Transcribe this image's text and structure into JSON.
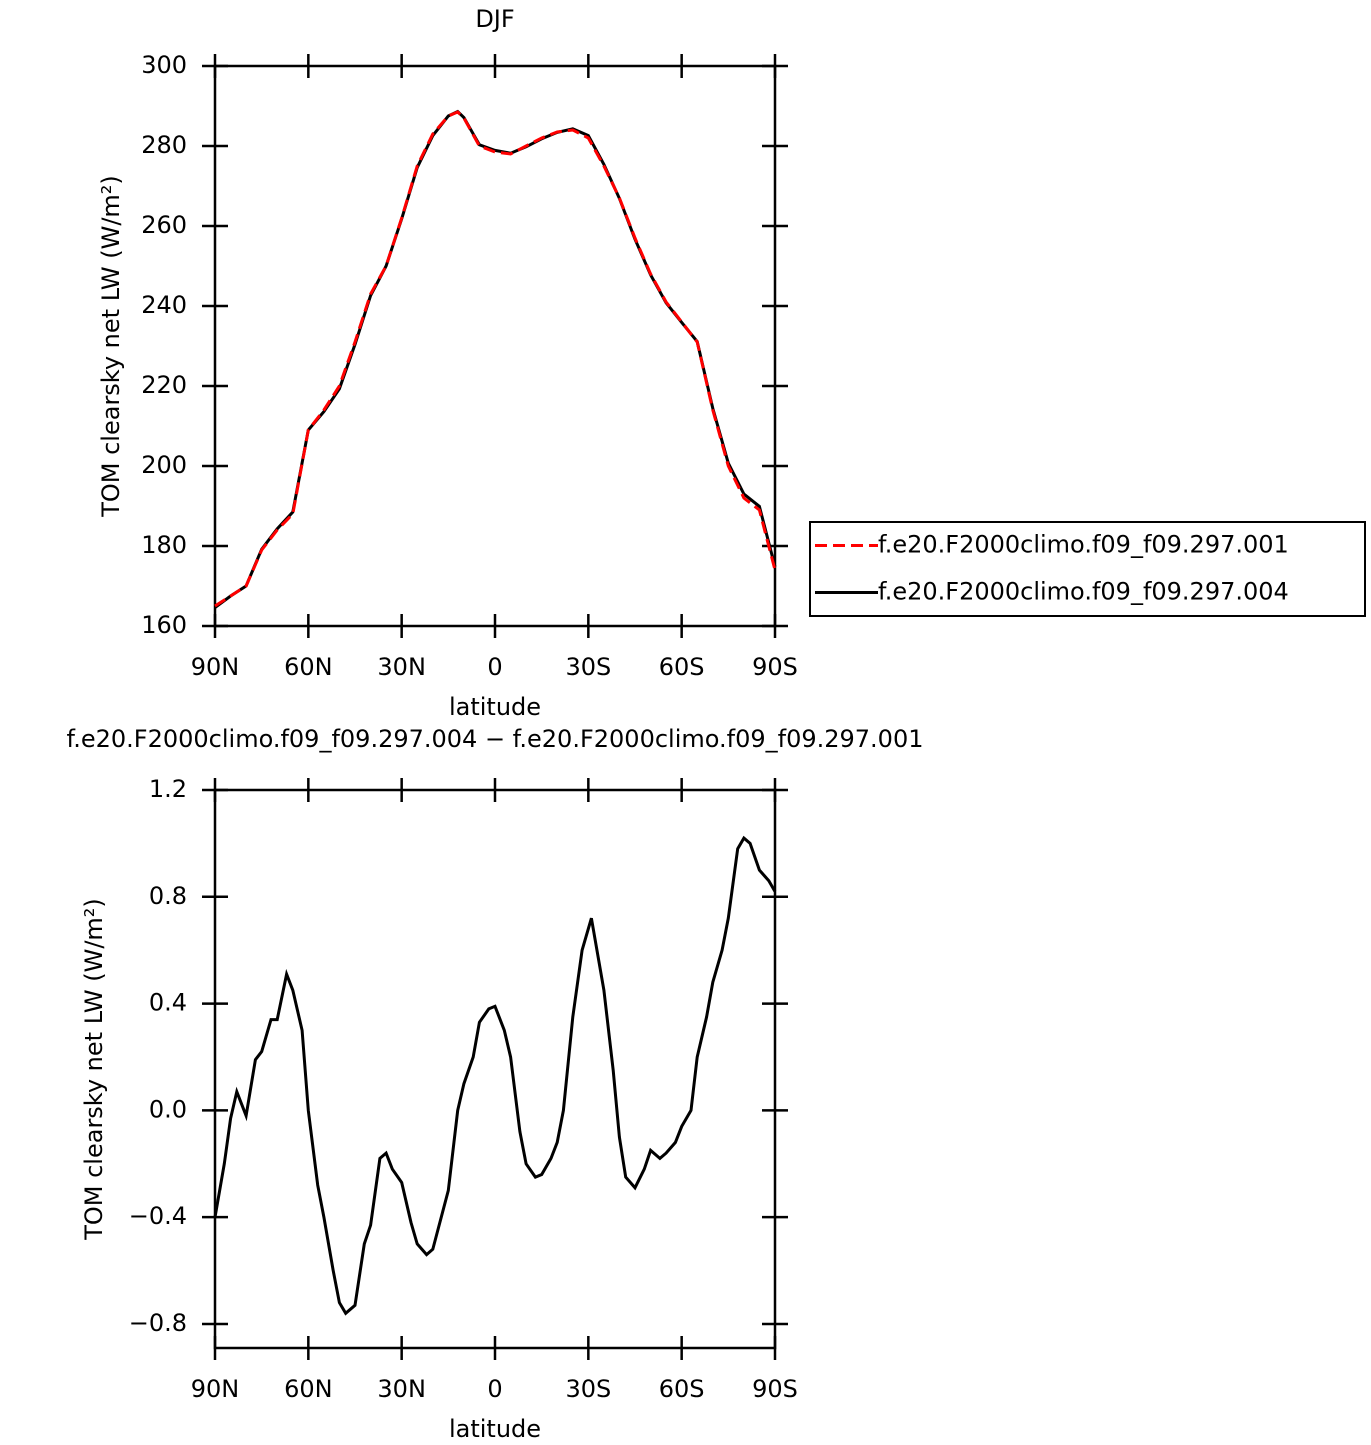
{
  "chart_data": [
    {
      "type": "line",
      "title": "DJF",
      "xlabel": "latitude",
      "ylabel": "TOM clearsky net LW (W/m²)",
      "x": [
        90,
        85,
        80,
        75,
        70,
        65,
        60,
        55,
        50,
        45,
        40,
        35,
        30,
        25,
        20,
        15,
        12,
        10,
        5,
        0,
        -5,
        -10,
        -15,
        -20,
        -25,
        -30,
        -35,
        -40,
        -45,
        -50,
        -55,
        -60,
        -65,
        -70,
        -75,
        -80,
        -85,
        -90
      ],
      "series": [
        {
          "name": "f.e20.F2000climo.f09_f09.297.001",
          "color": "#ff0000",
          "dashed": true,
          "values": [
            165,
            167.5,
            170,
            179,
            184,
            188,
            209,
            214,
            220,
            231,
            243,
            250,
            262,
            275,
            283,
            287.5,
            288.5,
            287,
            280,
            278.5,
            278,
            280,
            282,
            283.5,
            284,
            282,
            275,
            267,
            257,
            248,
            241,
            236,
            231,
            214,
            200,
            192,
            189,
            174
          ]
        },
        {
          "name": "f.e20.F2000climo.f09_f09.297.004",
          "color": "#000000",
          "dashed": false,
          "values": [
            164.6,
            167.5,
            170,
            179.2,
            184.3,
            188.5,
            209,
            213.6,
            219.3,
            230.4,
            242.6,
            250,
            261.8,
            274.6,
            282.6,
            287.5,
            288.6,
            287.1,
            280.3,
            278.9,
            278.2,
            279.8,
            281.8,
            283.4,
            284.3,
            282.6,
            275.4,
            266.9,
            256.7,
            247.8,
            240.8,
            235.9,
            231.1,
            214.4,
            200.7,
            193,
            189.9,
            174.8
          ]
        }
      ],
      "xlim": [
        90,
        -90
      ],
      "xticks": [
        {
          "value": 90,
          "label": "90N"
        },
        {
          "value": 60,
          "label": "60N"
        },
        {
          "value": 30,
          "label": "30N"
        },
        0,
        {
          "value": -30,
          "label": "30S"
        },
        {
          "value": -60,
          "label": "60S"
        },
        {
          "value": -90,
          "label": "90S"
        }
      ],
      "ylim": [
        160,
        300
      ],
      "yticks": [
        160,
        180,
        200,
        220,
        240,
        260,
        280,
        300
      ],
      "legend": "right"
    },
    {
      "type": "line",
      "title": "f.e20.F2000climo.f09_f09.297.004 − f.e20.F2000climo.f09_f09.297.001",
      "xlabel": "latitude",
      "ylabel": "TOM clearsky net LW (W/m²)",
      "x": [
        90,
        87,
        85,
        83,
        80,
        77,
        75,
        72,
        70,
        67,
        65,
        62,
        60,
        57,
        55,
        52,
        50,
        48,
        45,
        42,
        40,
        37,
        35,
        33,
        30,
        27,
        25,
        22,
        20,
        15,
        12,
        10,
        7,
        5,
        2,
        0,
        -3,
        -5,
        -8,
        -10,
        -13,
        -15,
        -18,
        -20,
        -22,
        -25,
        -28,
        -31,
        -35,
        -38,
        -40,
        -42,
        -45,
        -48,
        -50,
        -53,
        -55,
        -58,
        -60,
        -63,
        -65,
        -68,
        -70,
        -73,
        -75,
        -78,
        -80,
        -82,
        -85,
        -88,
        -90
      ],
      "color": "#000000",
      "values": [
        -0.4,
        -0.2,
        -0.03,
        0.07,
        -0.02,
        0.19,
        0.22,
        0.34,
        0.34,
        0.51,
        0.45,
        0.3,
        0.0,
        -0.28,
        -0.4,
        -0.6,
        -0.72,
        -0.76,
        -0.73,
        -0.5,
        -0.43,
        -0.18,
        -0.16,
        -0.22,
        -0.27,
        -0.42,
        -0.5,
        -0.54,
        -0.52,
        -0.3,
        0.0,
        0.1,
        0.2,
        0.33,
        0.38,
        0.39,
        0.3,
        0.2,
        -0.08,
        -0.2,
        -0.25,
        -0.24,
        -0.18,
        -0.12,
        0.0,
        0.35,
        0.6,
        0.72,
        0.45,
        0.15,
        -0.1,
        -0.25,
        -0.29,
        -0.22,
        -0.15,
        -0.18,
        -0.16,
        -0.12,
        -0.06,
        0.0,
        0.2,
        0.35,
        0.48,
        0.6,
        0.72,
        0.98,
        1.02,
        1.0,
        0.9,
        0.86,
        0.82
      ],
      "xlim": [
        90,
        -90
      ],
      "xticks": [
        {
          "value": 90,
          "label": "90N"
        },
        {
          "value": 60,
          "label": "60N"
        },
        {
          "value": 30,
          "label": "30N"
        },
        0,
        {
          "value": -30,
          "label": "30S"
        },
        {
          "value": -60,
          "label": "60S"
        },
        {
          "value": -90,
          "label": "90S"
        }
      ],
      "ylim": [
        -0.89,
        1.2
      ],
      "yticks": [
        {
          "value": -0.8,
          "label": "−0.8"
        },
        {
          "value": -0.4,
          "label": "−0.4"
        },
        {
          "value": 0,
          "label": "0.0"
        },
        0.4,
        0.8,
        1.2
      ]
    }
  ]
}
